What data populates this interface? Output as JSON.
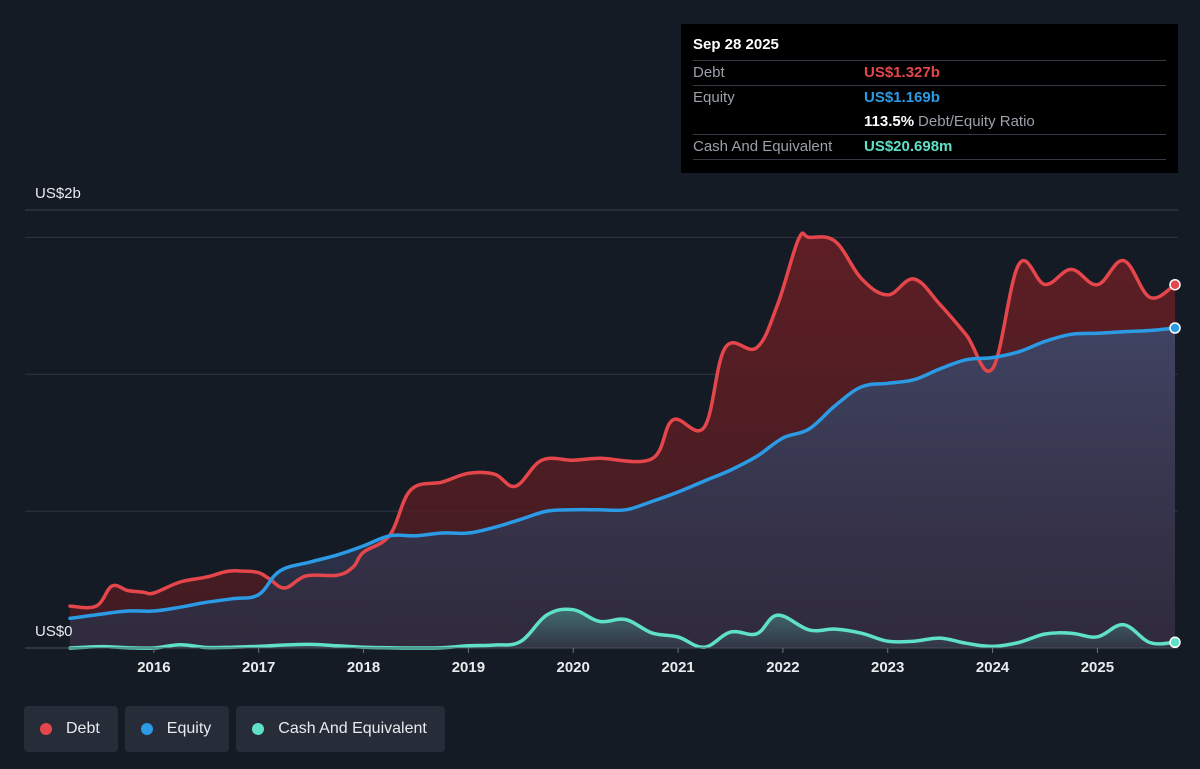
{
  "tooltip": {
    "date": "Sep 28 2025",
    "rows": [
      {
        "label": "Debt",
        "value": "US$1.327b",
        "color": "#e5464b"
      },
      {
        "label": "Equity",
        "value": "US$1.169b",
        "color": "#2b9be6"
      }
    ],
    "ratio_value": "113.5%",
    "ratio_label": "Debt/Equity Ratio",
    "cash": {
      "label": "Cash And Equivalent",
      "value": "US$20.698m",
      "color": "#5fe0c8"
    }
  },
  "legend": [
    {
      "label": "Debt",
      "color": "#e5464b"
    },
    {
      "label": "Equity",
      "color": "#2b9be6"
    },
    {
      "label": "Cash And Equivalent",
      "color": "#5fe0c8"
    }
  ],
  "chart_data": {
    "type": "area",
    "ylim": [
      0,
      1.6
    ],
    "xlim": [
      2015.2,
      2025.74
    ],
    "y_tick_labels": [
      {
        "value": 0,
        "label": "US$0"
      },
      {
        "value": 1.6,
        "label": "US$2b"
      }
    ],
    "x_tick_labels": [
      "2016",
      "2017",
      "2018",
      "2019",
      "2020",
      "2021",
      "2022",
      "2023",
      "2024",
      "2025"
    ],
    "x_tick_values": [
      2016,
      2017,
      2018,
      2019,
      2020,
      2021,
      2022,
      2023,
      2024,
      2025
    ],
    "gridlines": [
      1.5,
      1.0,
      0.5
    ],
    "series": [
      {
        "name": "Debt",
        "color": "#e5464b",
        "points": [
          [
            2015.2,
            0.153
          ],
          [
            2015.45,
            0.153
          ],
          [
            2015.6,
            0.226
          ],
          [
            2015.75,
            0.21
          ],
          [
            2015.9,
            0.204
          ],
          [
            2016.0,
            0.201
          ],
          [
            2016.25,
            0.241
          ],
          [
            2016.5,
            0.259
          ],
          [
            2016.7,
            0.28
          ],
          [
            2016.85,
            0.281
          ],
          [
            2017.0,
            0.275
          ],
          [
            2017.1,
            0.253
          ],
          [
            2017.25,
            0.219
          ],
          [
            2017.45,
            0.263
          ],
          [
            2017.75,
            0.266
          ],
          [
            2017.9,
            0.296
          ],
          [
            2018.0,
            0.35
          ],
          [
            2018.25,
            0.412
          ],
          [
            2018.45,
            0.577
          ],
          [
            2018.75,
            0.606
          ],
          [
            2019.0,
            0.638
          ],
          [
            2019.25,
            0.635
          ],
          [
            2019.45,
            0.591
          ],
          [
            2019.7,
            0.686
          ],
          [
            2020.0,
            0.686
          ],
          [
            2020.25,
            0.693
          ],
          [
            2020.75,
            0.691
          ],
          [
            2020.95,
            0.833
          ],
          [
            2021.25,
            0.807
          ],
          [
            2021.45,
            1.097
          ],
          [
            2021.75,
            1.097
          ],
          [
            2021.95,
            1.256
          ],
          [
            2022.15,
            1.494
          ],
          [
            2022.25,
            1.5
          ],
          [
            2022.5,
            1.485
          ],
          [
            2022.75,
            1.349
          ],
          [
            2023.0,
            1.29
          ],
          [
            2023.25,
            1.348
          ],
          [
            2023.5,
            1.254
          ],
          [
            2023.75,
            1.143
          ],
          [
            2024.0,
            1.021
          ],
          [
            2024.25,
            1.401
          ],
          [
            2024.5,
            1.328
          ],
          [
            2024.75,
            1.383
          ],
          [
            2025.0,
            1.327
          ],
          [
            2025.25,
            1.415
          ],
          [
            2025.5,
            1.281
          ],
          [
            2025.74,
            1.327
          ]
        ]
      },
      {
        "name": "Equity",
        "color": "#2b9be6",
        "points": [
          [
            2015.2,
            0.108
          ],
          [
            2015.5,
            0.124
          ],
          [
            2015.75,
            0.135
          ],
          [
            2016.0,
            0.135
          ],
          [
            2016.25,
            0.149
          ],
          [
            2016.5,
            0.167
          ],
          [
            2016.75,
            0.18
          ],
          [
            2017.0,
            0.195
          ],
          [
            2017.2,
            0.281
          ],
          [
            2017.5,
            0.315
          ],
          [
            2017.75,
            0.34
          ],
          [
            2018.0,
            0.373
          ],
          [
            2018.25,
            0.41
          ],
          [
            2018.5,
            0.41
          ],
          [
            2018.75,
            0.42
          ],
          [
            2019.0,
            0.42
          ],
          [
            2019.25,
            0.441
          ],
          [
            2019.5,
            0.47
          ],
          [
            2019.75,
            0.5
          ],
          [
            2020.0,
            0.505
          ],
          [
            2020.25,
            0.505
          ],
          [
            2020.5,
            0.505
          ],
          [
            2020.75,
            0.535
          ],
          [
            2021.0,
            0.57
          ],
          [
            2021.25,
            0.61
          ],
          [
            2021.5,
            0.65
          ],
          [
            2021.75,
            0.7
          ],
          [
            2022.0,
            0.767
          ],
          [
            2022.25,
            0.8
          ],
          [
            2022.5,
            0.886
          ],
          [
            2022.75,
            0.954
          ],
          [
            2023.0,
            0.967
          ],
          [
            2023.25,
            0.98
          ],
          [
            2023.5,
            1.02
          ],
          [
            2023.75,
            1.053
          ],
          [
            2024.0,
            1.061
          ],
          [
            2024.25,
            1.082
          ],
          [
            2024.5,
            1.12
          ],
          [
            2024.75,
            1.146
          ],
          [
            2025.0,
            1.15
          ],
          [
            2025.25,
            1.155
          ],
          [
            2025.5,
            1.16
          ],
          [
            2025.74,
            1.169
          ]
        ]
      },
      {
        "name": "Cash And Equivalent",
        "color": "#5fe0c8",
        "points": [
          [
            2015.2,
            0.0
          ],
          [
            2015.5,
            0.005
          ],
          [
            2015.75,
            0.001
          ],
          [
            2016.0,
            0.0
          ],
          [
            2016.25,
            0.012
          ],
          [
            2016.5,
            0.002
          ],
          [
            2016.75,
            0.003
          ],
          [
            2017.0,
            0.006
          ],
          [
            2017.25,
            0.011
          ],
          [
            2017.5,
            0.013
          ],
          [
            2017.75,
            0.008
          ],
          [
            2018.0,
            0.003
          ],
          [
            2018.25,
            0.001
          ],
          [
            2018.5,
            0.0
          ],
          [
            2018.75,
            0.001
          ],
          [
            2019.0,
            0.008
          ],
          [
            2019.25,
            0.011
          ],
          [
            2019.5,
            0.024
          ],
          [
            2019.75,
            0.121
          ],
          [
            2020.0,
            0.14
          ],
          [
            2020.25,
            0.097
          ],
          [
            2020.5,
            0.104
          ],
          [
            2020.75,
            0.055
          ],
          [
            2021.0,
            0.04
          ],
          [
            2021.25,
            0.003
          ],
          [
            2021.5,
            0.058
          ],
          [
            2021.75,
            0.052
          ],
          [
            2021.95,
            0.12
          ],
          [
            2022.25,
            0.066
          ],
          [
            2022.5,
            0.069
          ],
          [
            2022.75,
            0.054
          ],
          [
            2023.0,
            0.025
          ],
          [
            2023.25,
            0.025
          ],
          [
            2023.5,
            0.036
          ],
          [
            2023.75,
            0.017
          ],
          [
            2024.0,
            0.006
          ],
          [
            2024.25,
            0.02
          ],
          [
            2024.5,
            0.051
          ],
          [
            2024.75,
            0.054
          ],
          [
            2025.0,
            0.041
          ],
          [
            2025.25,
            0.085
          ],
          [
            2025.5,
            0.02
          ],
          [
            2025.74,
            0.021
          ]
        ]
      }
    ]
  }
}
